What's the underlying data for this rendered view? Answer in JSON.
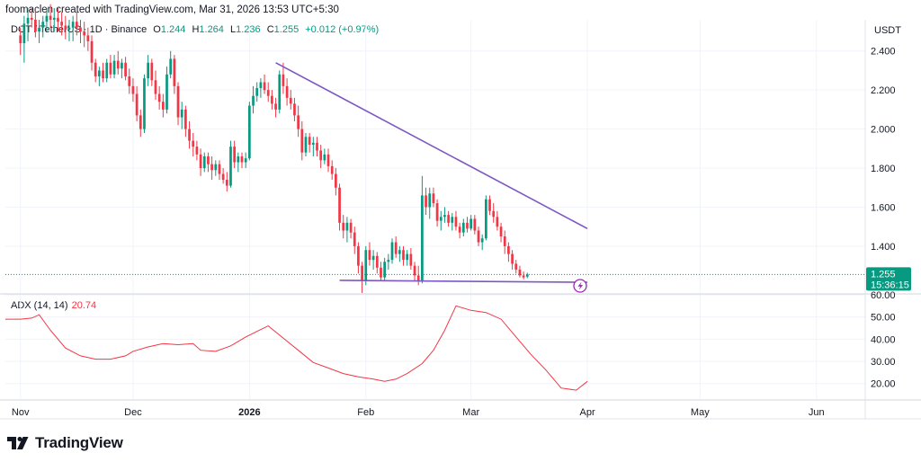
{
  "header": {
    "credit": "foomaclen created with TradingView.com, Mar 31, 2026 13:53 UTC+5:30"
  },
  "legend": {
    "symbol": "DOT / TetherUS · 1D · Binance",
    "open_label": "O",
    "open": "1.244",
    "high_label": "H",
    "high": "1.264",
    "low_label": "L",
    "low": "1.236",
    "close_label": "C",
    "close": "1.255",
    "change": "+0.012 (+0.97%)"
  },
  "price_axis": {
    "unit": "USDT"
  },
  "last_price": {
    "value": "1.255",
    "countdown": "15:36:15"
  },
  "adx": {
    "label": "ADX (14, 14)",
    "value": "20.74"
  },
  "footer": {
    "brand": "TradingView"
  },
  "colors": {
    "up": "#089981",
    "down": "#f23645",
    "trendline": "#7e57c2",
    "adx": "#f23645",
    "last_price_bg": "#089981"
  },
  "chart_data": [
    {
      "type": "candlestick",
      "title": "DOT / TetherUS · 1D · Binance",
      "ylabel": "USDT",
      "ylim": [
        1.16,
        2.56
      ],
      "yticks": [
        1.4,
        1.6,
        1.8,
        2.0,
        2.2,
        2.4
      ],
      "ytick_labels": [
        "1.400",
        "1.600",
        "1.800",
        "2.000",
        "2.200",
        "2.400"
      ],
      "xticks": [
        {
          "label": "Nov",
          "day": 0
        },
        {
          "label": "Dec",
          "day": 30
        },
        {
          "label": "2026",
          "day": 61
        },
        {
          "label": "Feb",
          "day": 92
        },
        {
          "label": "Mar",
          "day": 120
        },
        {
          "label": "Apr",
          "day": 151
        },
        {
          "label": "May",
          "day": 181
        },
        {
          "label": "Jun",
          "day": 212
        }
      ],
      "xlim_days": [
        -4,
        225
      ],
      "candles_ohlc": [
        [
          2.48,
          2.52,
          2.38,
          2.44
        ],
        [
          2.44,
          2.58,
          2.34,
          2.54
        ],
        [
          2.54,
          2.62,
          2.45,
          2.57
        ],
        [
          2.57,
          2.62,
          2.52,
          2.56
        ],
        [
          2.56,
          2.62,
          2.47,
          2.5
        ],
        [
          2.5,
          2.56,
          2.44,
          2.52
        ],
        [
          2.52,
          2.58,
          2.47,
          2.55
        ],
        [
          2.55,
          2.62,
          2.5,
          2.58
        ],
        [
          2.58,
          2.64,
          2.52,
          2.56
        ],
        [
          2.56,
          2.62,
          2.5,
          2.57
        ],
        [
          2.57,
          2.62,
          2.5,
          2.55
        ],
        [
          2.55,
          2.6,
          2.48,
          2.53
        ],
        [
          2.53,
          2.58,
          2.46,
          2.51
        ],
        [
          2.51,
          2.56,
          2.45,
          2.52
        ],
        [
          2.52,
          2.58,
          2.45,
          2.55
        ],
        [
          2.55,
          2.6,
          2.48,
          2.52
        ],
        [
          2.52,
          2.56,
          2.44,
          2.5
        ],
        [
          2.5,
          2.55,
          2.42,
          2.48
        ],
        [
          2.48,
          2.52,
          2.4,
          2.45
        ],
        [
          2.45,
          2.48,
          2.3,
          2.34
        ],
        [
          2.34,
          2.36,
          2.24,
          2.27
        ],
        [
          2.27,
          2.32,
          2.22,
          2.3
        ],
        [
          2.3,
          2.34,
          2.24,
          2.26
        ],
        [
          2.26,
          2.36,
          2.24,
          2.34
        ],
        [
          2.34,
          2.38,
          2.26,
          2.28
        ],
        [
          2.28,
          2.38,
          2.26,
          2.35
        ],
        [
          2.35,
          2.4,
          2.28,
          2.31
        ],
        [
          2.31,
          2.36,
          2.26,
          2.34
        ],
        [
          2.34,
          2.37,
          2.25,
          2.27
        ],
        [
          2.27,
          2.31,
          2.18,
          2.22
        ],
        [
          2.22,
          2.26,
          2.14,
          2.18
        ],
        [
          2.18,
          2.22,
          2.04,
          2.07
        ],
        [
          2.07,
          2.1,
          1.96,
          2.0
        ],
        [
          2.0,
          2.28,
          1.98,
          2.26
        ],
        [
          2.26,
          2.38,
          2.22,
          2.34
        ],
        [
          2.34,
          2.36,
          2.22,
          2.25
        ],
        [
          2.25,
          2.3,
          2.15,
          2.18
        ],
        [
          2.18,
          2.22,
          2.1,
          2.14
        ],
        [
          2.14,
          2.18,
          2.06,
          2.1
        ],
        [
          2.1,
          2.32,
          2.08,
          2.28
        ],
        [
          2.28,
          2.4,
          2.26,
          2.36
        ],
        [
          2.36,
          2.38,
          2.18,
          2.22
        ],
        [
          2.22,
          2.24,
          2.02,
          2.06
        ],
        [
          2.06,
          2.14,
          2.0,
          2.1
        ],
        [
          2.1,
          2.12,
          1.96,
          2.0
        ],
        [
          2.0,
          2.04,
          1.9,
          1.94
        ],
        [
          1.94,
          1.98,
          1.86,
          1.91
        ],
        [
          1.91,
          1.94,
          1.84,
          1.87
        ],
        [
          1.87,
          1.9,
          1.76,
          1.8
        ],
        [
          1.8,
          1.88,
          1.78,
          1.86
        ],
        [
          1.86,
          1.88,
          1.78,
          1.82
        ],
        [
          1.82,
          1.86,
          1.74,
          1.79
        ],
        [
          1.79,
          1.84,
          1.76,
          1.82
        ],
        [
          1.82,
          1.84,
          1.74,
          1.77
        ],
        [
          1.77,
          1.8,
          1.72,
          1.74
        ],
        [
          1.74,
          1.78,
          1.68,
          1.71
        ],
        [
          1.71,
          1.94,
          1.7,
          1.91
        ],
        [
          1.91,
          1.94,
          1.8,
          1.83
        ],
        [
          1.83,
          1.88,
          1.78,
          1.86
        ],
        [
          1.86,
          1.88,
          1.8,
          1.83
        ],
        [
          1.83,
          1.88,
          1.8,
          1.85
        ],
        [
          1.85,
          2.14,
          1.84,
          2.12
        ],
        [
          2.12,
          2.22,
          2.08,
          2.17
        ],
        [
          2.17,
          2.24,
          2.14,
          2.21
        ],
        [
          2.21,
          2.26,
          2.16,
          2.24
        ],
        [
          2.24,
          2.28,
          2.18,
          2.2
        ],
        [
          2.2,
          2.24,
          2.14,
          2.17
        ],
        [
          2.17,
          2.2,
          2.1,
          2.13
        ],
        [
          2.13,
          2.16,
          2.06,
          2.1
        ],
        [
          2.1,
          2.3,
          2.08,
          2.28
        ],
        [
          2.28,
          2.34,
          2.18,
          2.22
        ],
        [
          2.22,
          2.26,
          2.12,
          2.16
        ],
        [
          2.16,
          2.2,
          2.1,
          2.13
        ],
        [
          2.13,
          2.16,
          2.04,
          2.07
        ],
        [
          2.07,
          2.12,
          1.96,
          2.0
        ],
        [
          2.0,
          2.04,
          1.84,
          1.88
        ],
        [
          1.88,
          1.98,
          1.86,
          1.96
        ],
        [
          1.96,
          1.98,
          1.88,
          1.92
        ],
        [
          1.92,
          1.96,
          1.86,
          1.93
        ],
        [
          1.93,
          1.96,
          1.86,
          1.89
        ],
        [
          1.89,
          1.92,
          1.8,
          1.84
        ],
        [
          1.84,
          1.9,
          1.82,
          1.87
        ],
        [
          1.87,
          1.9,
          1.78,
          1.81
        ],
        [
          1.81,
          1.84,
          1.74,
          1.77
        ],
        [
          1.77,
          1.8,
          1.66,
          1.7
        ],
        [
          1.7,
          1.72,
          1.48,
          1.52
        ],
        [
          1.52,
          1.56,
          1.44,
          1.48
        ],
        [
          1.48,
          1.55,
          1.42,
          1.52
        ],
        [
          1.52,
          1.54,
          1.44,
          1.47
        ],
        [
          1.47,
          1.5,
          1.36,
          1.4
        ],
        [
          1.4,
          1.42,
          1.26,
          1.3
        ],
        [
          1.3,
          1.32,
          1.16,
          1.22
        ],
        [
          1.22,
          1.4,
          1.2,
          1.38
        ],
        [
          1.38,
          1.42,
          1.3,
          1.33
        ],
        [
          1.33,
          1.38,
          1.28,
          1.35
        ],
        [
          1.35,
          1.37,
          1.26,
          1.29
        ],
        [
          1.29,
          1.32,
          1.22,
          1.24
        ],
        [
          1.24,
          1.34,
          1.22,
          1.32
        ],
        [
          1.32,
          1.36,
          1.28,
          1.33
        ],
        [
          1.33,
          1.44,
          1.31,
          1.42
        ],
        [
          1.42,
          1.45,
          1.34,
          1.36
        ],
        [
          1.36,
          1.4,
          1.32,
          1.38
        ],
        [
          1.38,
          1.4,
          1.3,
          1.33
        ],
        [
          1.33,
          1.38,
          1.3,
          1.36
        ],
        [
          1.36,
          1.39,
          1.28,
          1.3
        ],
        [
          1.3,
          1.32,
          1.22,
          1.25
        ],
        [
          1.25,
          1.3,
          1.2,
          1.22
        ],
        [
          1.22,
          1.76,
          1.21,
          1.66
        ],
        [
          1.66,
          1.7,
          1.56,
          1.6
        ],
        [
          1.6,
          1.7,
          1.54,
          1.67
        ],
        [
          1.67,
          1.7,
          1.6,
          1.62
        ],
        [
          1.62,
          1.64,
          1.5,
          1.53
        ],
        [
          1.53,
          1.58,
          1.48,
          1.55
        ],
        [
          1.55,
          1.6,
          1.52,
          1.56
        ],
        [
          1.56,
          1.58,
          1.5,
          1.52
        ],
        [
          1.52,
          1.57,
          1.48,
          1.55
        ],
        [
          1.55,
          1.58,
          1.48,
          1.5
        ],
        [
          1.5,
          1.52,
          1.44,
          1.47
        ],
        [
          1.47,
          1.54,
          1.45,
          1.52
        ],
        [
          1.52,
          1.55,
          1.47,
          1.49
        ],
        [
          1.49,
          1.56,
          1.48,
          1.54
        ],
        [
          1.54,
          1.56,
          1.46,
          1.48
        ],
        [
          1.48,
          1.5,
          1.4,
          1.42
        ],
        [
          1.42,
          1.46,
          1.38,
          1.44
        ],
        [
          1.44,
          1.66,
          1.43,
          1.64
        ],
        [
          1.64,
          1.66,
          1.56,
          1.58
        ],
        [
          1.58,
          1.62,
          1.52,
          1.55
        ],
        [
          1.55,
          1.58,
          1.48,
          1.5
        ],
        [
          1.5,
          1.52,
          1.42,
          1.45
        ],
        [
          1.45,
          1.48,
          1.36,
          1.4
        ],
        [
          1.4,
          1.42,
          1.32,
          1.36
        ],
        [
          1.36,
          1.38,
          1.28,
          1.31
        ],
        [
          1.31,
          1.33,
          1.26,
          1.28
        ],
        [
          1.28,
          1.3,
          1.24,
          1.25
        ],
        [
          1.25,
          1.27,
          1.23,
          1.24
        ],
        [
          1.244,
          1.264,
          1.236,
          1.255
        ]
      ],
      "first_candle_day": 0,
      "trendlines": [
        {
          "from": {
            "day": 68,
            "price": 2.34
          },
          "to": {
            "day": 151,
            "price": 1.49
          }
        },
        {
          "from": {
            "day": 85,
            "price": 1.225
          },
          "to": {
            "day": 151,
            "price": 1.215
          }
        }
      ],
      "last_price": 1.255,
      "last_price_countdown": "15:36:15"
    },
    {
      "type": "line",
      "title": "ADX (14, 14)",
      "ylim": [
        13,
        60
      ],
      "yticks": [
        20,
        30,
        40,
        50,
        60
      ],
      "ytick_labels": [
        "20.00",
        "30.00",
        "40.00",
        "50.00",
        "60.00"
      ],
      "series": [
        {
          "name": "ADX (14, 14)",
          "days": [
            -4,
            0,
            3,
            5,
            8,
            12,
            16,
            20,
            24,
            28,
            30,
            34,
            38,
            42,
            46,
            48,
            52,
            56,
            60,
            63,
            66,
            70,
            74,
            78,
            82,
            86,
            90,
            94,
            97,
            100,
            103,
            107,
            110,
            113,
            116,
            120,
            124,
            128,
            132,
            136,
            140,
            144,
            148,
            151
          ],
          "values": [
            49,
            49,
            49.5,
            51,
            44,
            36,
            32.5,
            31,
            31,
            32.5,
            34.5,
            36.5,
            38,
            37.5,
            38,
            35,
            34.5,
            37,
            41,
            43.5,
            46,
            40.5,
            35,
            29.5,
            27,
            24.5,
            23,
            22,
            21,
            22,
            24.5,
            29,
            35,
            44,
            55,
            53,
            52,
            49,
            41,
            33,
            26,
            18,
            17,
            21
          ]
        }
      ],
      "last_value": 20.74
    }
  ]
}
